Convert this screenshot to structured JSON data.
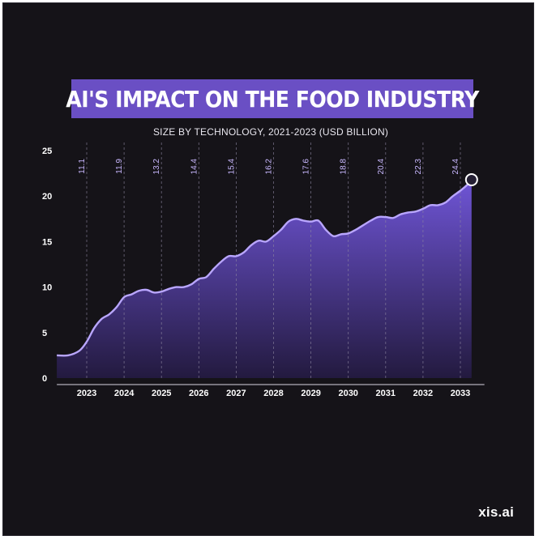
{
  "title": "AI'S IMPACT ON THE FOOD INDUSTRY",
  "subtitle": "SIZE BY TECHNOLOGY, 2021-2023 (USD BILLION)",
  "brand": "xis.ai",
  "colors": {
    "background": "#151318",
    "title_band": "#6a4fc4",
    "line": "#b9a6ff",
    "area_top": "#6f55d6",
    "area_bottom": "#231a3f",
    "value_label": "#c9b8ff"
  },
  "chart_data": {
    "type": "area",
    "title": "AI'S IMPACT ON THE FOOD INDUSTRY",
    "subtitle": "SIZE BY TECHNOLOGY, 2021-2023 (USD BILLION)",
    "xlabel": "",
    "ylabel": "",
    "ylim": [
      0,
      25
    ],
    "yticks": [
      0,
      5,
      10,
      15,
      20,
      25
    ],
    "xlim": [
      2022.2,
      2033.6
    ],
    "grid": "vertical dashed lines at each year",
    "categories": [
      "2023",
      "2024",
      "2025",
      "2026",
      "2027",
      "2028",
      "2029",
      "2030",
      "2031",
      "2032",
      "2033"
    ],
    "annotated_values": [
      11.1,
      11.9,
      13.2,
      14.4,
      15.4,
      16.2,
      17.6,
      18.8,
      20.4,
      22.3,
      24.4
    ],
    "series": [
      {
        "x": [
          2022.2,
          2022.5,
          2022.8,
          2023.0,
          2023.2,
          2023.4,
          2023.6,
          2023.8,
          2024.0,
          2024.2,
          2024.4,
          2024.6,
          2024.8,
          2025.0,
          2025.2,
          2025.4,
          2025.6,
          2025.8,
          2026.0,
          2026.2,
          2026.4,
          2026.6,
          2026.8,
          2027.0,
          2027.2,
          2027.4,
          2027.6,
          2027.8,
          2028.0,
          2028.2,
          2028.4,
          2028.6,
          2028.8,
          2029.0,
          2029.2,
          2029.4,
          2029.6,
          2029.8,
          2030.0,
          2030.2,
          2030.4,
          2030.6,
          2030.8,
          2031.0,
          2031.2,
          2031.4,
          2031.6,
          2031.8,
          2032.0,
          2032.2,
          2032.4,
          2032.6,
          2032.8,
          2033.0,
          2033.2,
          2033.3
        ],
        "values": [
          2.5,
          2.5,
          3.0,
          4.0,
          5.5,
          6.5,
          7.0,
          7.8,
          8.9,
          9.2,
          9.6,
          9.7,
          9.4,
          9.5,
          9.8,
          10.0,
          10.0,
          10.3,
          10.9,
          11.1,
          12.0,
          12.8,
          13.4,
          13.4,
          13.8,
          14.6,
          15.1,
          15.0,
          15.6,
          16.3,
          17.2,
          17.5,
          17.3,
          17.2,
          17.3,
          16.3,
          15.6,
          15.8,
          15.9,
          16.3,
          16.8,
          17.3,
          17.7,
          17.7,
          17.6,
          18.0,
          18.2,
          18.3,
          18.6,
          19.0,
          19.0,
          19.3,
          20.0,
          20.6,
          21.3,
          21.8
        ]
      }
    ]
  }
}
